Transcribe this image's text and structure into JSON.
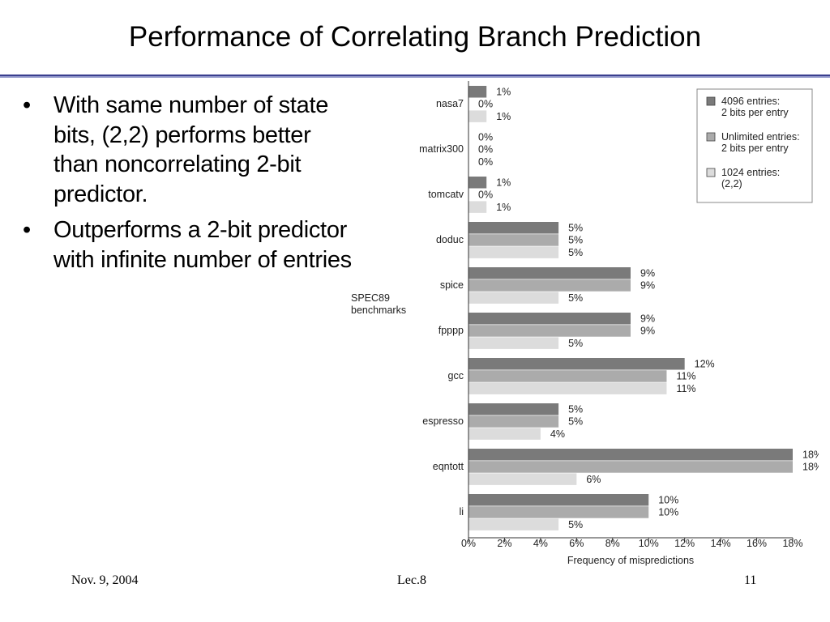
{
  "slide": {
    "title": "Performance of Correlating Branch Prediction",
    "bullets": [
      "With same number of state bits, (2,2) performs better than noncorrelating 2-bit predictor.",
      "Outperforms a 2-bit predictor with infinite number of entries"
    ],
    "bullet_glyph": "•"
  },
  "footer": {
    "date": "Nov. 9, 2004",
    "lecture": "Lec.8",
    "page": "11"
  },
  "chart_data": {
    "type": "bar",
    "orientation": "horizontal",
    "categories": [
      "nasa7",
      "matrix300",
      "tomcatv",
      "doduc",
      "spice",
      "fpppp",
      "gcc",
      "espresso",
      "eqntott",
      "li"
    ],
    "ylabel": "SPEC89 benchmarks",
    "xlabel": "Frequency of mispredictions",
    "xlim": [
      0,
      18
    ],
    "x_ticks": [
      0,
      2,
      4,
      6,
      8,
      10,
      12,
      14,
      16,
      18
    ],
    "x_tick_labels": [
      "0%",
      "2%",
      "4%",
      "6%",
      "8%",
      "10%",
      "12%",
      "14%",
      "16%",
      "18%"
    ],
    "grid": false,
    "legend_position": "top-right",
    "series": [
      {
        "name": "4096 entries: 2 bits per entry",
        "legend_lines": [
          "4096 entries:",
          "2 bits per entry"
        ],
        "color": "#7a7a7a",
        "values": [
          1,
          0,
          1,
          5,
          9,
          9,
          12,
          5,
          18,
          10
        ]
      },
      {
        "name": "Unlimited entries: 2 bits per entry",
        "legend_lines": [
          "Unlimited entries:",
          "2 bits per entry"
        ],
        "color": "#ababab",
        "values": [
          0,
          0,
          0,
          5,
          9,
          9,
          11,
          5,
          18,
          10
        ]
      },
      {
        "name": "1024 entries: (2,2)",
        "legend_lines": [
          "1024 entries:",
          "(2,2)"
        ],
        "color": "#dcdcdc",
        "values": [
          1,
          0,
          1,
          5,
          5,
          5,
          11,
          4,
          6,
          5
        ]
      }
    ]
  }
}
